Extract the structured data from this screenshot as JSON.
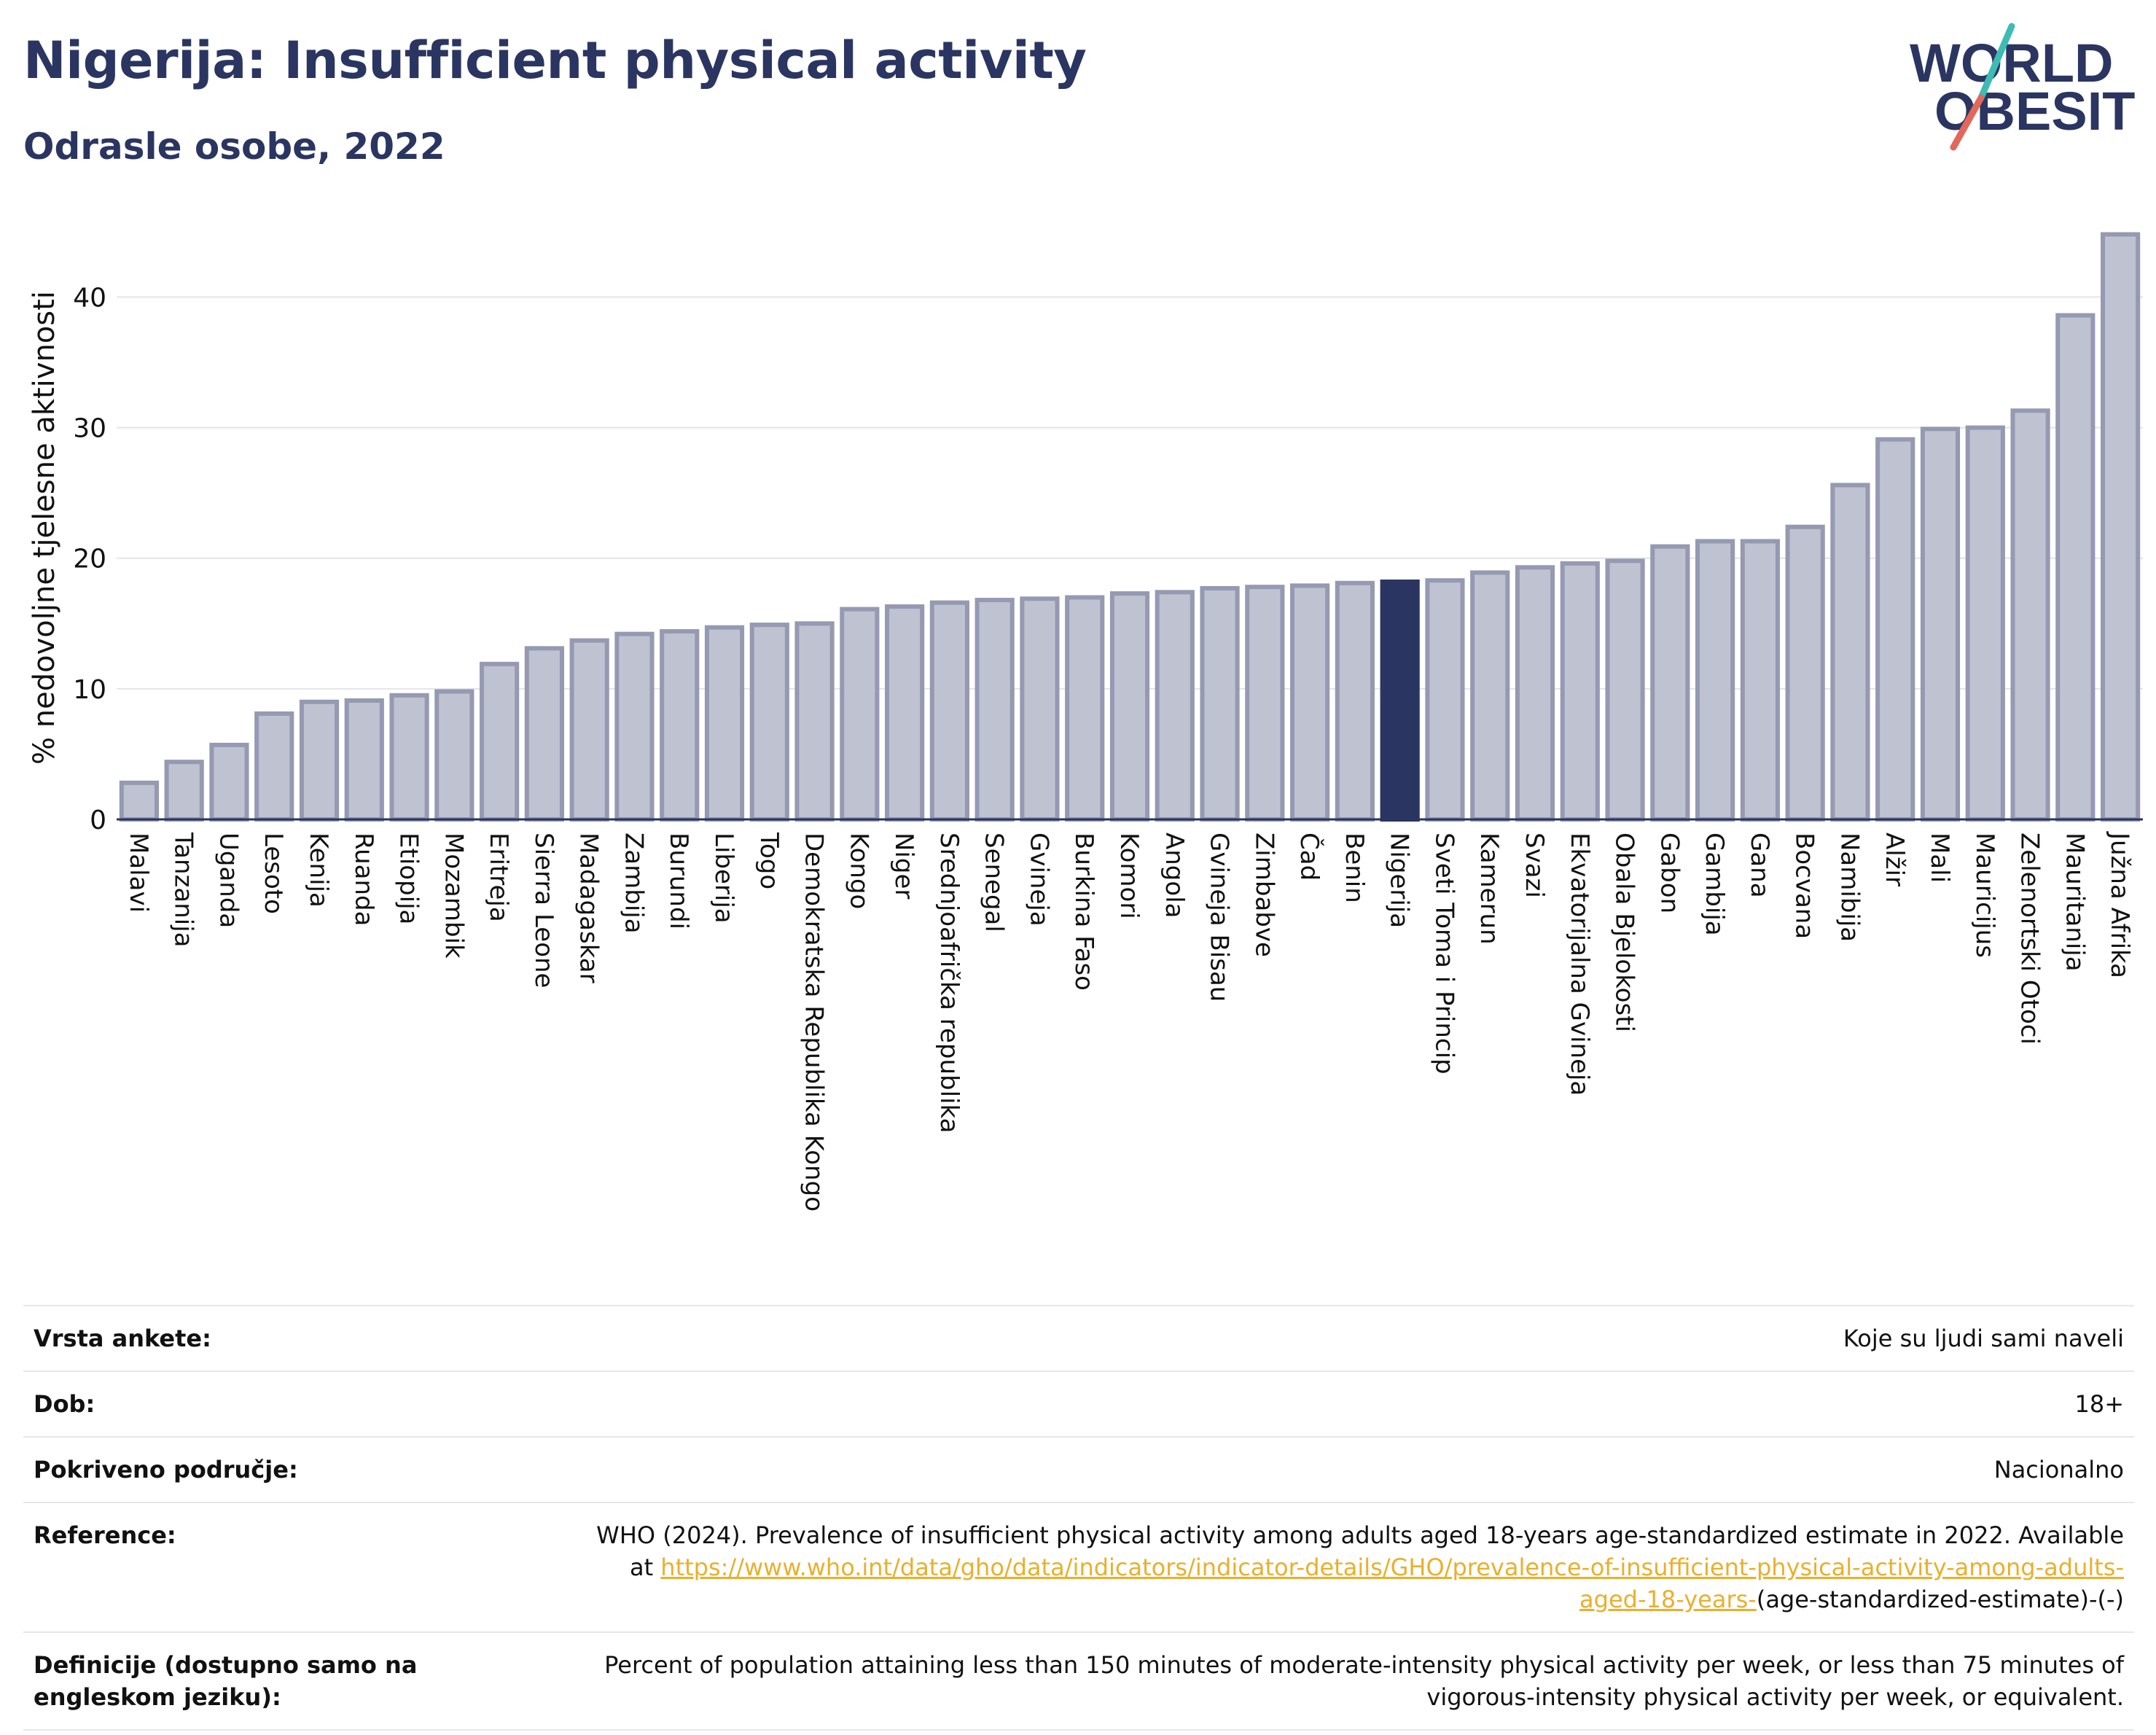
{
  "header": {
    "title": "Nigerija: Insufficient physical activity",
    "subtitle": "Odrasle osobe, 2022"
  },
  "logo": {
    "line1": "WORLD",
    "line2": "OBESITY"
  },
  "colors": {
    "navy": "#2b3561",
    "bar_fill": "#bfc2d0",
    "bar_stroke": "#9599b1",
    "highlight": "#2b3561",
    "logo_teal": "#3cbcb4",
    "logo_coral": "#e2685a",
    "link": "#e8b02e"
  },
  "chart_data": {
    "type": "bar",
    "title": "Nigerija: Insufficient physical activity",
    "subtitle": "Odrasle osobe, 2022",
    "xlabel": "",
    "ylabel": "% nedovoljne tjelesne aktivnosti",
    "ylim": [
      0,
      46
    ],
    "yticks": [
      0,
      10,
      20,
      30,
      40
    ],
    "grid": true,
    "highlight": "Nigerija",
    "categories": [
      "Malavi",
      "Tanzanija",
      "Uganda",
      "Lesoto",
      "Kenija",
      "Ruanda",
      "Etiopija",
      "Mozambik",
      "Eritreja",
      "Sierra Leone",
      "Madagaskar",
      "Zambija",
      "Burundi",
      "Liberija",
      "Togo",
      "Demokratska Republika Kongo",
      "Kongo",
      "Niger",
      "Srednjoafrička republika",
      "Senegal",
      "Gvineja",
      "Burkina Faso",
      "Komori",
      "Angola",
      "Gvineja Bisau",
      "Zimbabve",
      "Čad",
      "Benin",
      "Nigerija",
      "Sveti Toma i Princip",
      "Kamerun",
      "Svazi",
      "Ekvatorijalna Gvineja",
      "Obala Bjelokosti",
      "Gabon",
      "Gambija",
      "Gana",
      "Bocvana",
      "Namibija",
      "Alžir",
      "Mali",
      "Mauricijus",
      "Zelenortski Otoci",
      "Mauritanija",
      "Južna Afrika"
    ],
    "values": [
      2.8,
      4.4,
      5.7,
      8.1,
      9.0,
      9.1,
      9.5,
      9.8,
      11.9,
      13.1,
      13.7,
      14.2,
      14.4,
      14.7,
      14.9,
      15.0,
      16.1,
      16.3,
      16.6,
      16.8,
      16.9,
      17.0,
      17.3,
      17.4,
      17.7,
      17.8,
      17.9,
      18.1,
      18.2,
      18.3,
      18.9,
      19.3,
      19.6,
      19.8,
      20.9,
      21.3,
      21.3,
      22.4,
      25.6,
      29.1,
      29.9,
      30.0,
      31.3,
      38.6,
      44.8
    ]
  },
  "info": [
    {
      "key": "Vrsta ankete:",
      "value": "Koje su ljudi sami naveli"
    },
    {
      "key": "Dob:",
      "value": "18+"
    },
    {
      "key": "Pokriveno područje:",
      "value": "Nacionalno"
    },
    {
      "key": "Reference:",
      "value_pre": "WHO (2024). Prevalence of insufficient physical activity among adults aged 18-years age-standardized estimate in 2022. Available at",
      "value_link": "https://www.who.int/data/gho/data/indicators/indicator-details/GHO/prevalence-of-insufficient-physical-activity-among-adults-aged-18-years-",
      "value_post": "(age-standardized-estimate)-(-)"
    },
    {
      "key": "Definicije (dostupno samo na engleskom jeziku):",
      "value": "Percent of population attaining less than 150 minutes of moderate-intensity physical activity per week, or less than 75 minutes of vigorous-intensity physical activity per week, or equivalent."
    }
  ]
}
